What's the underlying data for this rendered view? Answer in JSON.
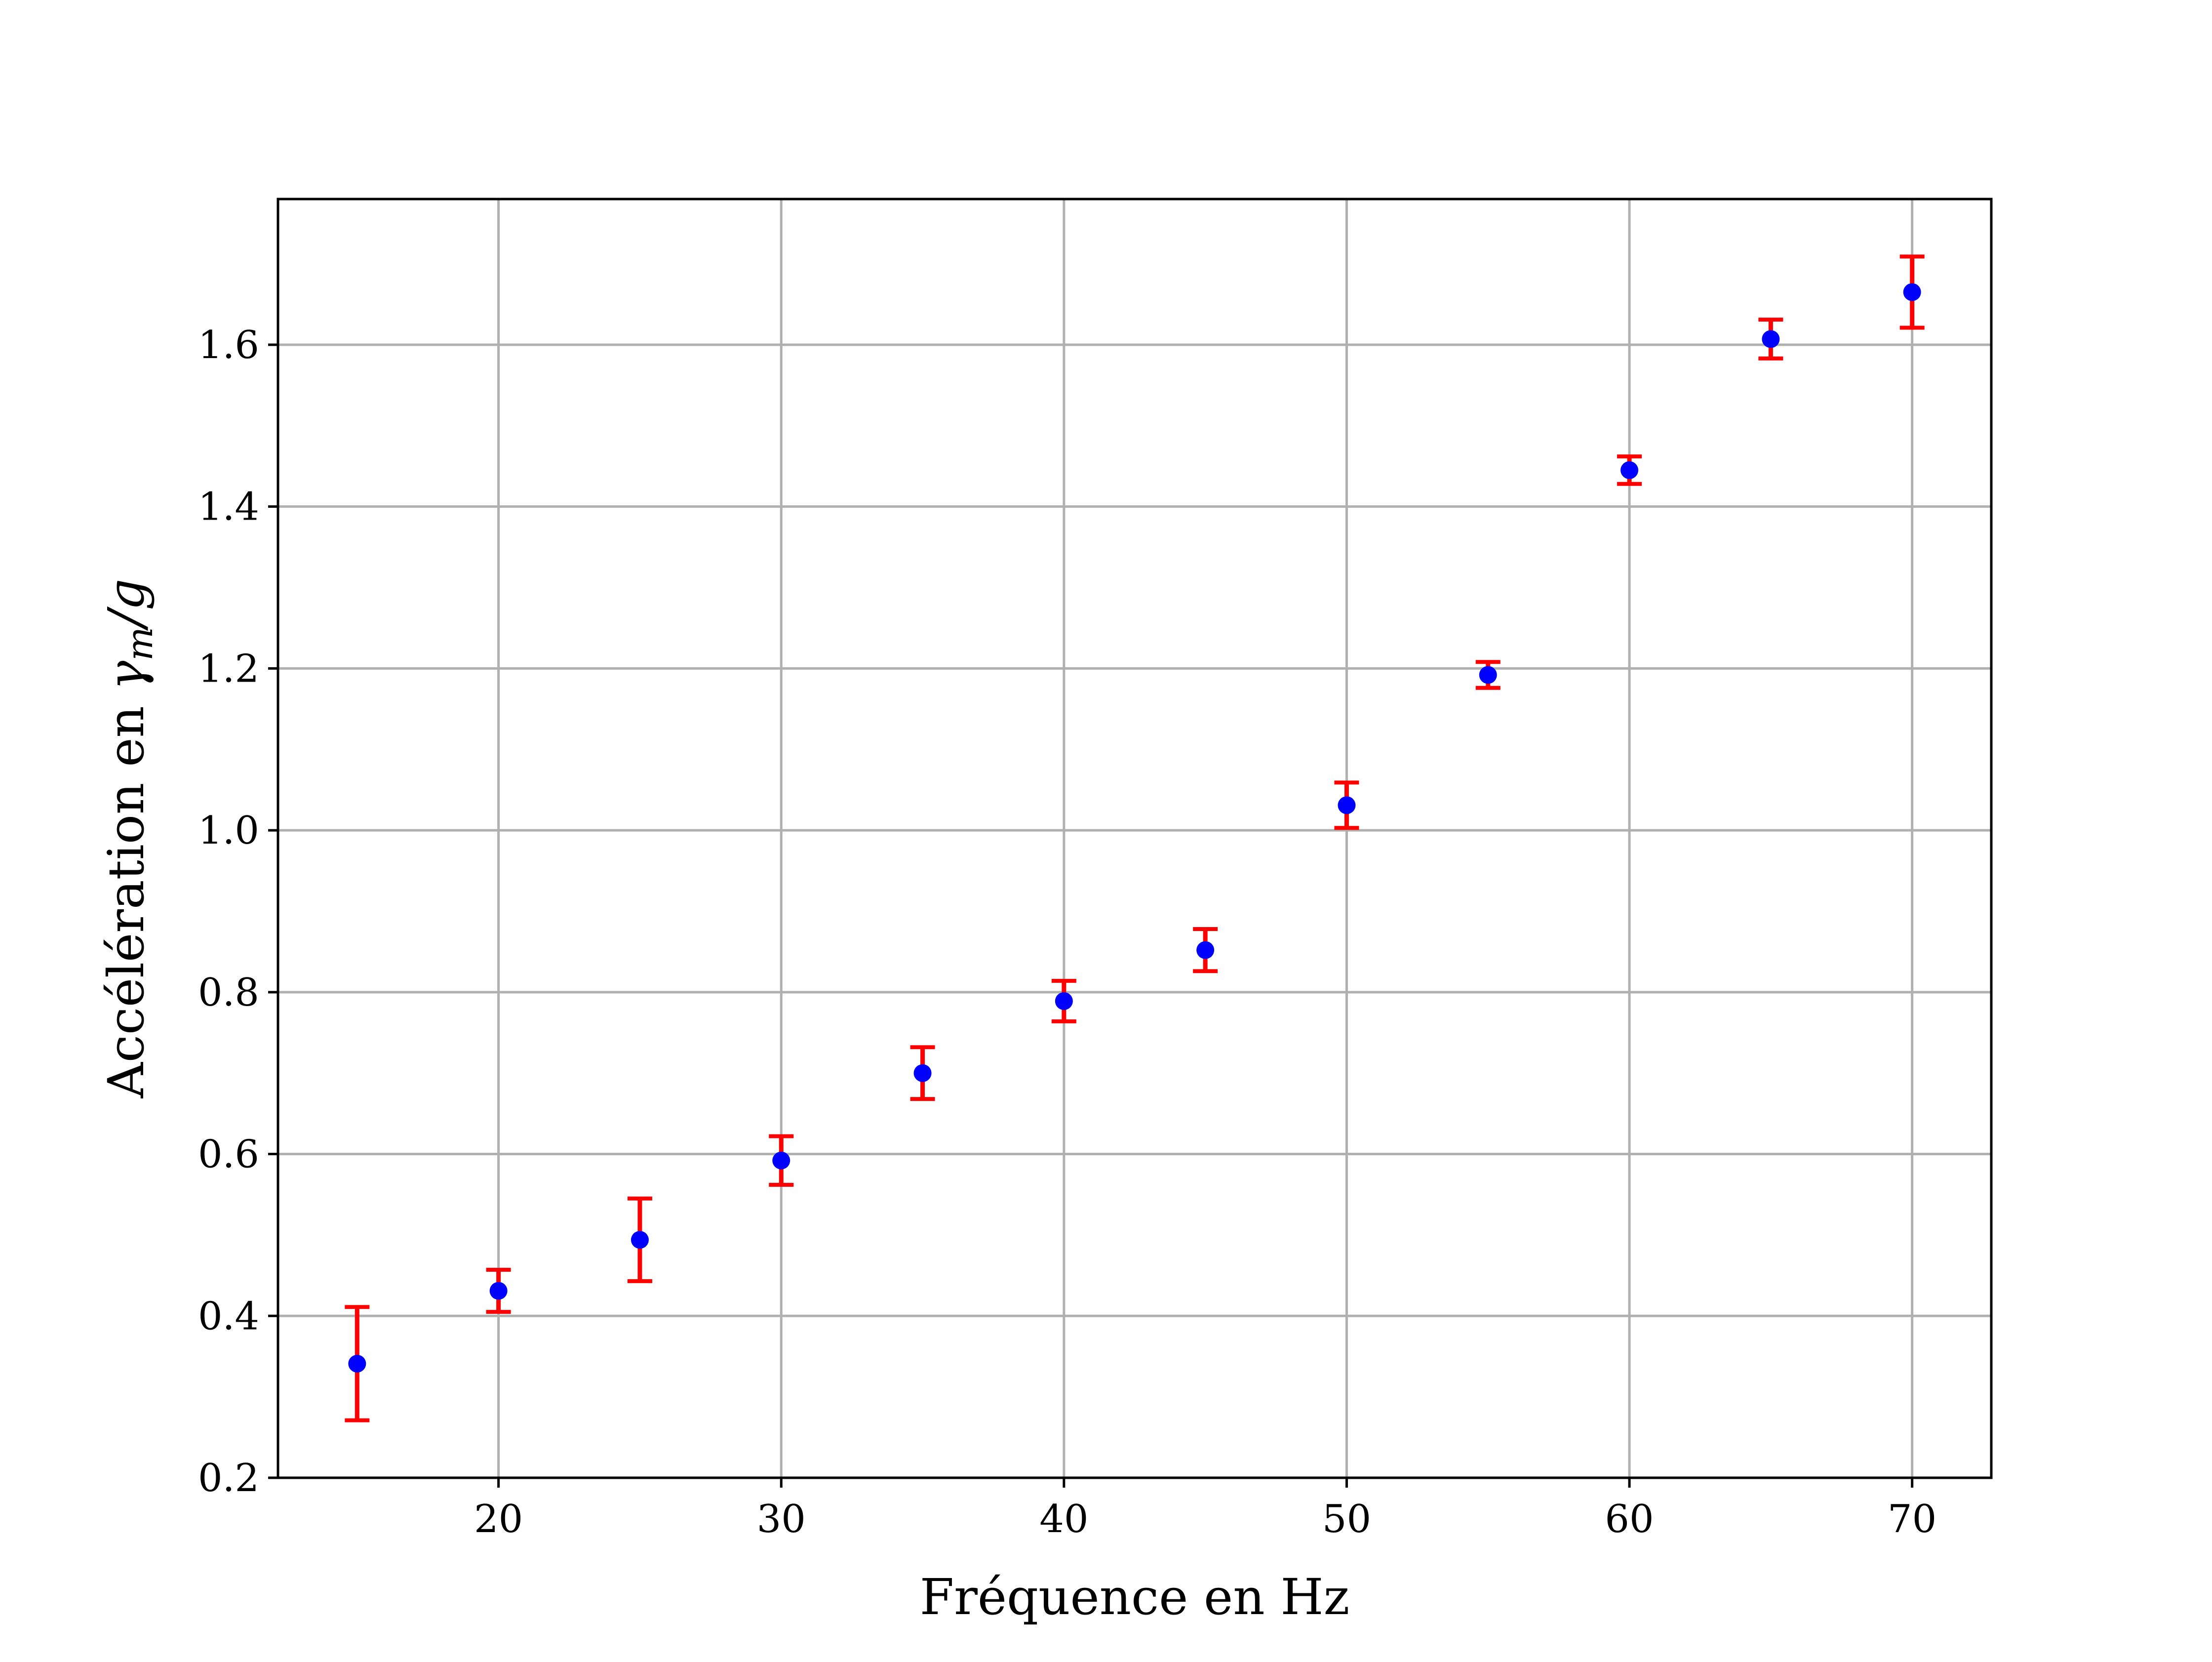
{
  "chart_data": {
    "type": "scatter",
    "title": "",
    "xlabel": "Fréquence en Hz",
    "ylabel": "Accélération en γm/g",
    "ylabel_parts": {
      "text": "Accélération en ",
      "symbol": "γ",
      "subscript": "m",
      "suffix": "/g"
    },
    "xlim": [
      12.2,
      72.8
    ],
    "ylim": [
      0.2,
      1.78
    ],
    "xticks": [
      20,
      30,
      40,
      50,
      60,
      70
    ],
    "xtick_labels": [
      "20",
      "30",
      "40",
      "50",
      "60",
      "70"
    ],
    "yticks": [
      0.2,
      0.4,
      0.6,
      0.8,
      1.0,
      1.2,
      1.4,
      1.6
    ],
    "ytick_labels": [
      "0.2",
      "0.4",
      "0.6",
      "0.8",
      "1.0",
      "1.2",
      "1.4",
      "1.6"
    ],
    "grid": true,
    "legend": false,
    "series": [
      {
        "marker_color": "#0000ff",
        "errorbar_color": "#ff0000",
        "x": [
          15,
          20,
          25,
          30,
          35,
          40,
          45,
          50,
          55,
          60,
          65,
          70
        ],
        "y": [
          0.341,
          0.431,
          0.494,
          0.592,
          0.7,
          0.789,
          0.852,
          1.031,
          1.192,
          1.445,
          1.607,
          1.665
        ],
        "yerr": [
          0.07,
          0.026,
          0.051,
          0.03,
          0.032,
          0.025,
          0.026,
          0.028,
          0.016,
          0.017,
          0.024,
          0.044
        ]
      }
    ]
  }
}
